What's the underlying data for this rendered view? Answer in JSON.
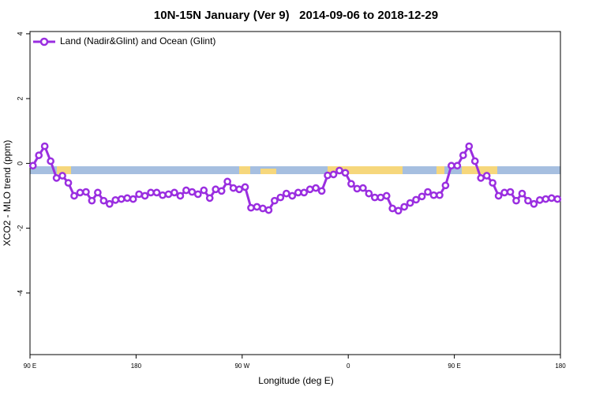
{
  "chart_data": {
    "type": "line",
    "title": "10N-15N January (Ver 9)   2014-09-06 to 2018-12-29",
    "x_label": "Longitude (deg E)",
    "y_label": "XCO2 - MLO trend (ppm)",
    "x": [
      92.5,
      97.5,
      102.5,
      107.5,
      112.5,
      117.5,
      122.5,
      127.5,
      132.5,
      137.5,
      142.5,
      147.5,
      152.5,
      157.5,
      162.5,
      167.5,
      172.5,
      177.5,
      182.5,
      187.5,
      192.5,
      197.5,
      202.5,
      207.5,
      212.5,
      217.5,
      222.5,
      227.5,
      232.5,
      237.5,
      242.5,
      247.5,
      252.5,
      257.5,
      262.5,
      267.5,
      272.5,
      277.5,
      282.5,
      287.5,
      292.5,
      297.5,
      302.5,
      307.5,
      312.5,
      317.5,
      322.5,
      327.5,
      332.5,
      337.5,
      342.5,
      347.5,
      352.5,
      357.5,
      362.5,
      367.5,
      372.5,
      377.5,
      382.5,
      387.5,
      392.5,
      397.5,
      402.5,
      407.5,
      412.5,
      417.5,
      422.5,
      427.5,
      432.5,
      437.5,
      442.5,
      447.5,
      452.5,
      457.5,
      462.5,
      467.5,
      472.5,
      477.5,
      482.5,
      487.5,
      492.5,
      497.5,
      502.5,
      507.5,
      512.5,
      517.5,
      522.5,
      527.5,
      532.5,
      537.5
    ],
    "series": [
      {
        "name": "Land (Nadir&Glint) and Ocean (Glint)",
        "color": "#9a2ee0",
        "values": [
          -0.07,
          0.25,
          0.53,
          0.07,
          -0.45,
          -0.38,
          -0.6,
          -1.0,
          -0.9,
          -0.88,
          -1.15,
          -0.9,
          -1.15,
          -1.25,
          -1.13,
          -1.1,
          -1.07,
          -1.1,
          -0.95,
          -1.0,
          -0.9,
          -0.9,
          -0.98,
          -0.95,
          -0.9,
          -1.0,
          -0.83,
          -0.88,
          -0.95,
          -0.83,
          -1.07,
          -0.8,
          -0.85,
          -0.56,
          -0.76,
          -0.8,
          -0.73,
          -1.37,
          -1.34,
          -1.39,
          -1.44,
          -1.15,
          -1.05,
          -0.93,
          -1.0,
          -0.9,
          -0.9,
          -0.8,
          -0.76,
          -0.85,
          -0.37,
          -0.34,
          -0.22,
          -0.29,
          -0.63,
          -0.78,
          -0.76,
          -0.93,
          -1.05,
          -1.05,
          -1.0,
          -1.39,
          -1.46,
          -1.34,
          -1.22,
          -1.12,
          -1.02,
          -0.88,
          -0.98,
          -0.98,
          -0.68,
          -0.07,
          -0.07,
          0.25,
          0.53,
          0.07,
          -0.45,
          -0.38,
          -0.6,
          -1.0,
          -0.9,
          -0.88,
          -1.15,
          -0.93,
          -1.15,
          -1.25,
          -1.13,
          -1.1,
          -1.07,
          -1.1
        ]
      }
    ],
    "xlim": [
      90,
      540
    ],
    "xticks": [
      {
        "value": 90,
        "label": "90 E"
      },
      {
        "value": 180,
        "label": "180"
      },
      {
        "value": 270,
        "label": "90 W"
      },
      {
        "value": 360,
        "label": "0"
      },
      {
        "value": 450,
        "label": "90 E"
      },
      {
        "value": 540,
        "label": "180"
      }
    ],
    "ylim": [
      -5.9,
      4.07
    ],
    "yticks": [
      4,
      2,
      0,
      -2,
      -4
    ],
    "legend": "top-left"
  }
}
